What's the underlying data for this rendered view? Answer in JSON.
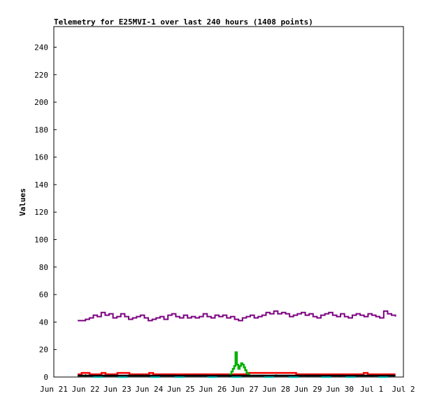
{
  "chart_data": {
    "type": "line",
    "title": "Telemetry for E25MVI-1 over last 240 hours (1408 points)",
    "xlabel": "",
    "ylabel": "Values",
    "ylim": [
      0,
      255
    ],
    "yticks": [
      0,
      20,
      40,
      60,
      80,
      100,
      120,
      140,
      160,
      180,
      200,
      220,
      240
    ],
    "xlim": [
      0,
      11
    ],
    "xtick_labels": [
      "Jun 21",
      "Jun 22",
      "Jun 23",
      "Jun 24",
      "Jun 25",
      "Jun 26",
      "Jun 27",
      "Jun 28",
      "Jun 29",
      "Jun 30",
      "Jul 1",
      "Jul 2"
    ],
    "x_unit": "days after Jun 21",
    "grid": false,
    "legend": "none",
    "series": [
      {
        "color": "#7b0080",
        "x_start": 0.75,
        "x_end": 10.75,
        "values": [
          41,
          41,
          42,
          43,
          45,
          44,
          47,
          45,
          46,
          43,
          44,
          46,
          44,
          42,
          43,
          44,
          45,
          43,
          41,
          42,
          43,
          44,
          42,
          45,
          46,
          44,
          43,
          45,
          43,
          44,
          43,
          44,
          46,
          44,
          43,
          45,
          44,
          45,
          43,
          44,
          42,
          41,
          43,
          44,
          45,
          43,
          44,
          45,
          47,
          46,
          48,
          46,
          47,
          46,
          44,
          45,
          46,
          47,
          45,
          46,
          44,
          43,
          45,
          46,
          47,
          45,
          44,
          46,
          44,
          43,
          45,
          46,
          45,
          44,
          46,
          45,
          44,
          43,
          48,
          46,
          45,
          44
        ]
      },
      {
        "color": "#ff0000",
        "x_start": 0.75,
        "x_end": 10.75,
        "values": [
          2,
          3,
          3,
          2,
          2,
          2,
          3,
          2,
          2,
          2,
          3,
          3,
          3,
          2,
          2,
          2,
          2,
          2,
          3,
          2,
          2,
          2,
          2,
          2,
          2,
          2,
          2,
          2,
          2,
          2,
          2,
          2,
          2,
          2,
          2,
          2,
          2,
          2,
          2,
          2,
          2,
          2,
          2,
          3,
          3,
          3,
          3,
          3,
          3,
          3,
          3,
          3,
          3,
          3,
          3,
          2,
          2,
          2,
          2,
          2,
          2,
          2,
          2,
          2,
          2,
          2,
          2,
          2,
          2,
          2,
          2,
          2,
          3,
          2,
          2,
          2,
          2,
          2,
          2,
          2,
          2
        ]
      },
      {
        "color": "#00b000",
        "x_start": 5.5,
        "x_end": 6.15,
        "values": [
          1,
          2,
          4,
          6,
          8,
          18,
          9,
          6,
          8,
          10,
          9,
          7,
          5,
          3,
          2,
          1
        ]
      },
      {
        "color": "#00c0c0",
        "x_start": 0.75,
        "x_end": 10.75,
        "values": [
          1,
          1,
          0,
          1,
          1,
          0,
          1,
          1,
          1,
          0,
          1,
          1,
          0,
          1,
          1,
          1,
          0,
          1,
          1,
          0,
          1,
          1,
          1,
          0,
          1,
          1,
          0,
          1,
          1,
          1,
          0,
          1,
          1,
          0,
          1,
          1,
          1,
          0,
          1,
          1
        ]
      },
      {
        "color": "#000000",
        "x_start": 0.75,
        "x_end": 10.75,
        "values": [
          1,
          1,
          1,
          1,
          1,
          1,
          1,
          1,
          1,
          1,
          1,
          1,
          1,
          1,
          1,
          1,
          1,
          1,
          1,
          1,
          1,
          1,
          1,
          1,
          1,
          1,
          1,
          1,
          1,
          1,
          1,
          1,
          1,
          1,
          1,
          1,
          1,
          1,
          1,
          1
        ]
      }
    ]
  }
}
